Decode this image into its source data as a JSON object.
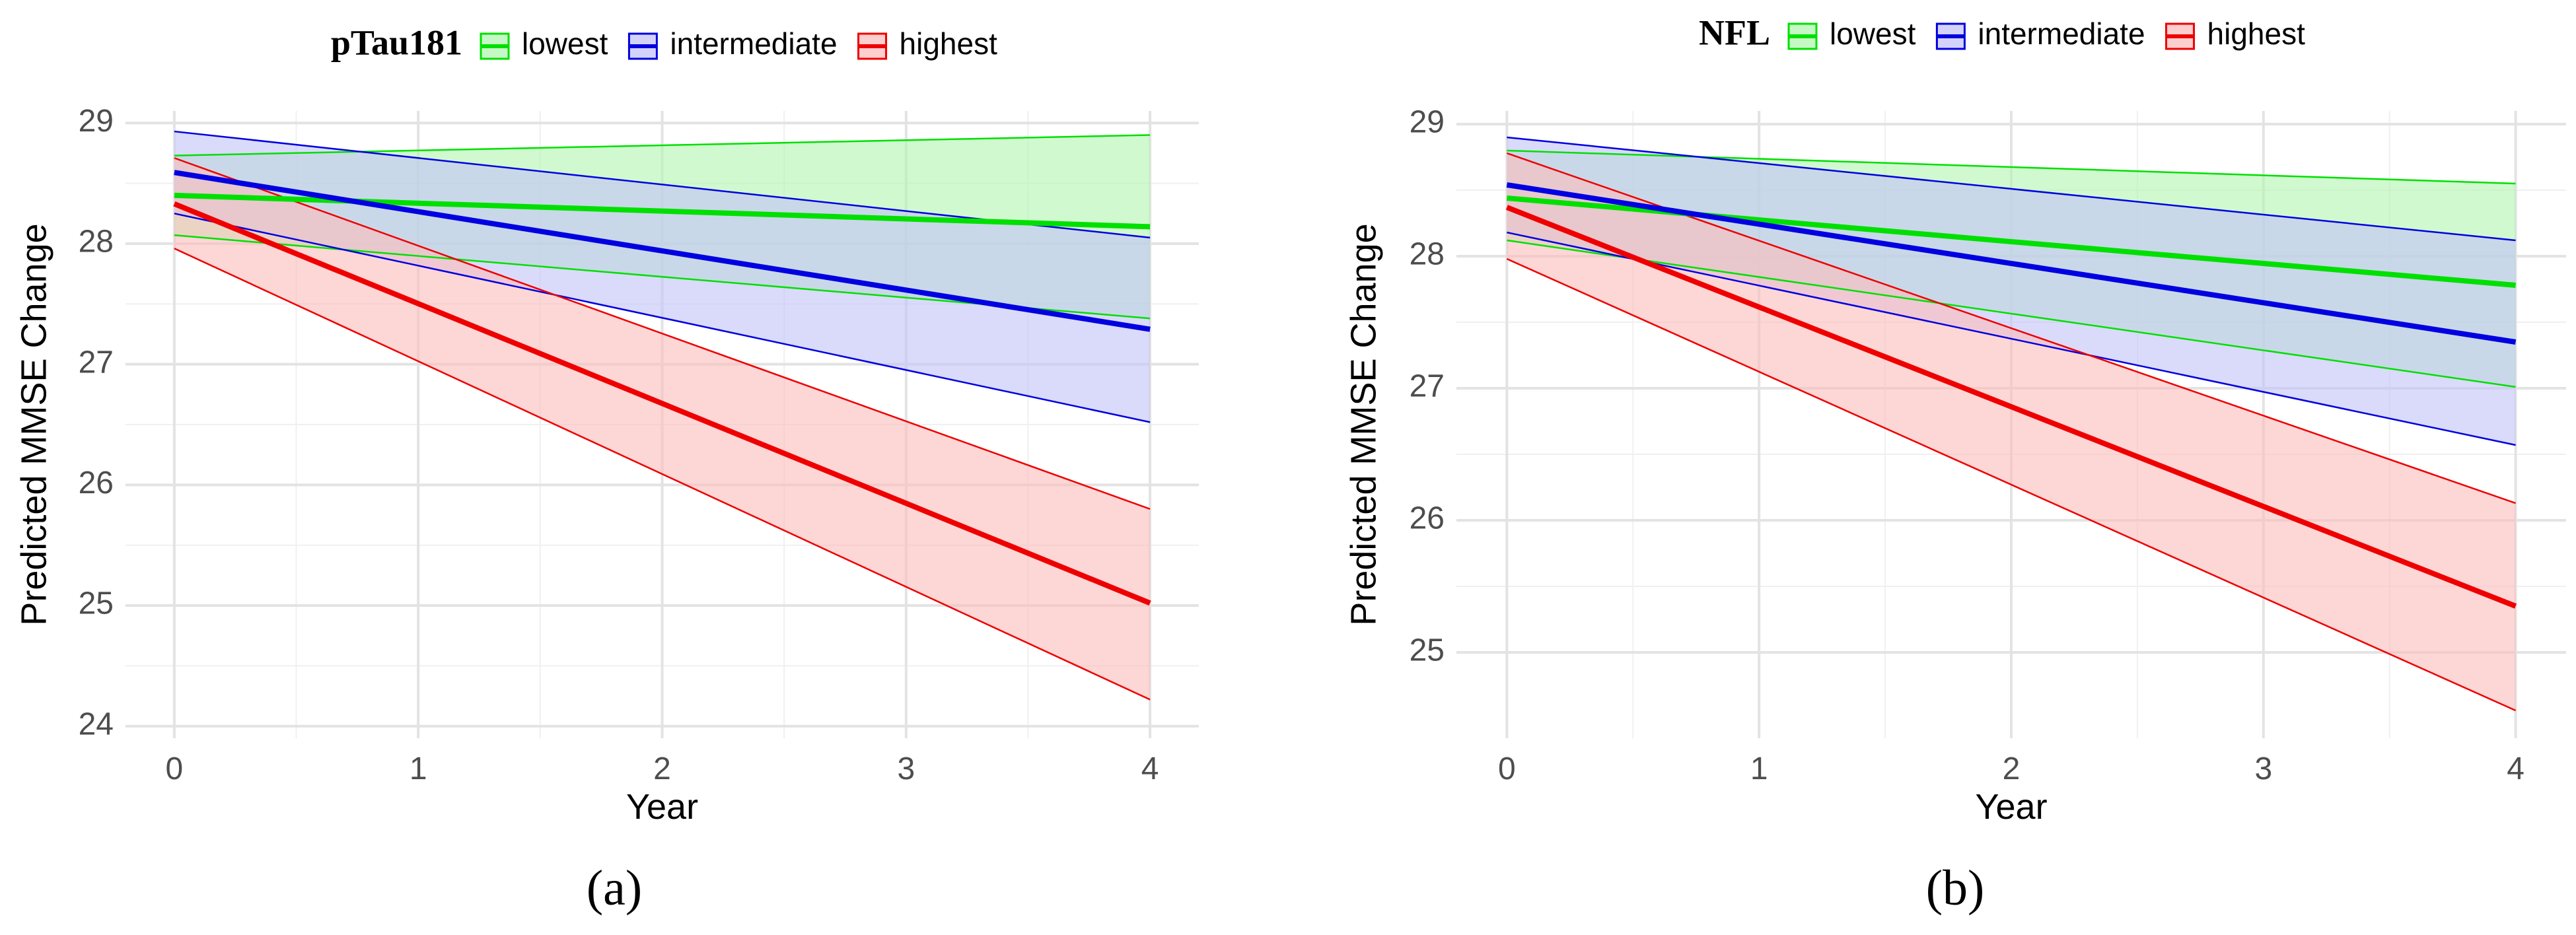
{
  "figure": {
    "panel_labels": [
      "(a)",
      "(b)"
    ]
  },
  "chart_data": [
    {
      "type": "line",
      "panel_label": "(a)",
      "legend_title": "pTau181",
      "legend_position": "top",
      "xlabel": "Year",
      "ylabel": "Predicted MMSE Change",
      "xlim": [
        -0.2,
        4.2
      ],
      "ylim": [
        23.9,
        29.1
      ],
      "x_ticks": [
        0,
        1,
        2,
        3,
        4
      ],
      "y_ticks": [
        24,
        25,
        26,
        27,
        28,
        29
      ],
      "grid": true,
      "x": [
        0,
        4
      ],
      "series": [
        {
          "name": "lowest",
          "color": "#00e000",
          "fill": "#b3f5b3",
          "values": [
            28.4,
            28.14
          ],
          "lower": [
            28.07,
            27.38
          ],
          "upper": [
            28.73,
            28.9
          ]
        },
        {
          "name": "intermediate",
          "color": "#0000e0",
          "fill": "#c4c4f7",
          "values": [
            28.59,
            27.29
          ],
          "lower": [
            28.25,
            26.52
          ],
          "upper": [
            28.93,
            28.05
          ]
        },
        {
          "name": "highest",
          "color": "#ee0000",
          "fill": "#fbbdbd",
          "values": [
            28.33,
            25.02
          ],
          "lower": [
            27.96,
            24.22
          ],
          "upper": [
            28.71,
            25.8
          ]
        }
      ]
    },
    {
      "type": "line",
      "panel_label": "(b)",
      "legend_title": "NFL",
      "legend_position": "top",
      "xlabel": "Year",
      "ylabel": "Predicted MMSE Change",
      "xlim": [
        -0.2,
        4.2
      ],
      "ylim": [
        24.35,
        29.1
      ],
      "x_ticks": [
        0,
        1,
        2,
        3,
        4
      ],
      "y_ticks": [
        25,
        26,
        27,
        28,
        29
      ],
      "grid": true,
      "x": [
        0,
        4
      ],
      "series": [
        {
          "name": "lowest",
          "color": "#00e000",
          "fill": "#b3f5b3",
          "values": [
            28.44,
            27.78
          ],
          "lower": [
            28.12,
            27.01
          ],
          "upper": [
            28.8,
            28.55
          ]
        },
        {
          "name": "intermediate",
          "color": "#0000e0",
          "fill": "#c4c4f7",
          "values": [
            28.54,
            27.35
          ],
          "lower": [
            28.18,
            26.57
          ],
          "upper": [
            28.9,
            28.12
          ]
        },
        {
          "name": "highest",
          "color": "#ee0000",
          "fill": "#fbbdbd",
          "values": [
            28.37,
            25.35
          ],
          "lower": [
            27.98,
            24.56
          ],
          "upper": [
            28.78,
            26.13
          ]
        }
      ]
    }
  ]
}
